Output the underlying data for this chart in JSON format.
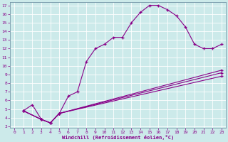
{
  "background_color": "#cceaea",
  "grid_color": "#aacccc",
  "line_color": "#880088",
  "xlabel": "Windchill (Refroidissement éolien,°C)",
  "xlim": [
    -0.5,
    23.5
  ],
  "ylim": [
    2.8,
    17.4
  ],
  "xticks": [
    0,
    1,
    2,
    3,
    4,
    5,
    6,
    7,
    8,
    9,
    10,
    11,
    12,
    13,
    14,
    15,
    16,
    17,
    18,
    19,
    20,
    21,
    22,
    23
  ],
  "yticks": [
    3,
    4,
    5,
    6,
    7,
    8,
    9,
    10,
    11,
    12,
    13,
    14,
    15,
    16,
    17
  ],
  "line1": {
    "x": [
      1,
      2,
      3,
      4,
      5,
      6,
      7,
      8,
      9,
      10,
      11,
      12,
      13,
      14,
      15,
      16,
      17,
      18,
      19,
      20,
      21,
      22,
      23
    ],
    "y": [
      4.8,
      5.5,
      3.8,
      3.4,
      4.5,
      6.5,
      7.0,
      10.5,
      12.0,
      12.5,
      13.3,
      13.3,
      15.0,
      16.2,
      17.0,
      17.0,
      16.5,
      15.8,
      14.5,
      12.5,
      12.0,
      12.0,
      12.5
    ]
  },
  "line2": {
    "x": [
      1,
      3,
      4,
      5,
      23
    ],
    "y": [
      4.8,
      3.8,
      3.4,
      4.5,
      9.5
    ]
  },
  "line3": {
    "x": [
      1,
      3,
      4,
      5,
      23
    ],
    "y": [
      4.8,
      3.8,
      3.4,
      4.5,
      9.2
    ]
  },
  "line4": {
    "x": [
      1,
      3,
      4,
      5,
      23
    ],
    "y": [
      4.8,
      3.8,
      3.4,
      4.5,
      8.8
    ]
  }
}
